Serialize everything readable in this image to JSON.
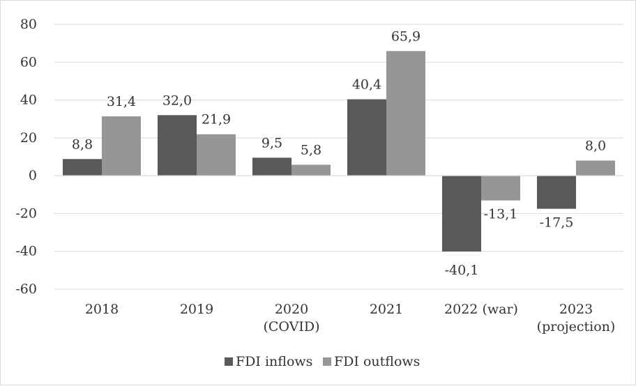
{
  "chart_data": {
    "type": "bar",
    "categories": [
      [
        "2018"
      ],
      [
        "2019"
      ],
      [
        "2020",
        "(COVID)"
      ],
      [
        "2021"
      ],
      [
        "2022 (war)"
      ],
      [
        "2023",
        "(projection)"
      ]
    ],
    "series": [
      {
        "name": "FDI inflows",
        "color": "#595959",
        "values": [
          8.8,
          32.0,
          9.5,
          40.4,
          -40.1,
          -17.5
        ],
        "labels": [
          "8,8",
          "32,0",
          "9,5",
          "40,4",
          "-40,1",
          "-17,5"
        ]
      },
      {
        "name": "FDI outflows",
        "color": "#969696",
        "values": [
          31.4,
          21.9,
          5.8,
          65.9,
          -13.1,
          8.0
        ],
        "labels": [
          "31,4",
          "21,9",
          "5,8",
          "65,9",
          "-13,1",
          "8,0"
        ]
      }
    ],
    "ylim": [
      -60,
      80
    ],
    "yticks": [
      80,
      60,
      40,
      20,
      0,
      -20,
      -40,
      -60
    ],
    "grid": true,
    "legend_position": "bottom",
    "title": "",
    "xlabel": "",
    "ylabel": ""
  }
}
